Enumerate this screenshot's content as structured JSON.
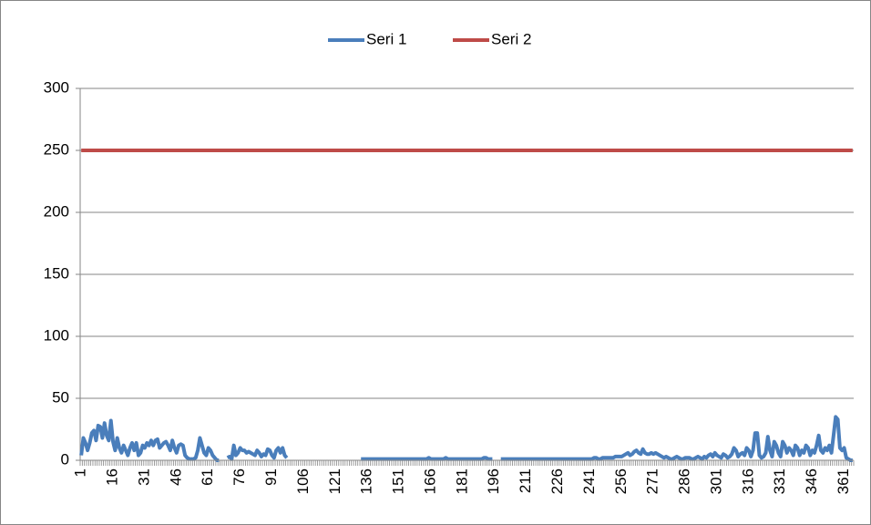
{
  "chart_data": {
    "type": "line",
    "categories": [
      "1",
      null,
      null,
      null,
      null,
      null,
      null,
      null,
      null,
      null,
      null,
      null,
      null,
      null,
      null,
      "16",
      null,
      null,
      null,
      null,
      null,
      null,
      null,
      null,
      null,
      null,
      null,
      null,
      null,
      null,
      "31",
      null,
      null,
      null,
      null,
      null,
      null,
      null,
      null,
      null,
      null,
      null,
      null,
      null,
      null,
      "46",
      null,
      null,
      null,
      null,
      null,
      null,
      null,
      null,
      null,
      null,
      null,
      null,
      null,
      null,
      "61",
      null,
      null,
      null,
      null,
      null,
      null,
      null,
      null,
      null,
      null,
      null,
      null,
      null,
      null,
      "76",
      null,
      null,
      null,
      null,
      null,
      null,
      null,
      null,
      null,
      null,
      null,
      null,
      null,
      null,
      "91",
      null,
      null,
      null,
      null,
      null,
      null,
      null,
      null,
      null,
      null,
      null,
      null,
      null,
      null,
      "106",
      null,
      null,
      null,
      null,
      null,
      null,
      null,
      null,
      null,
      null,
      null,
      null,
      null,
      null,
      "121",
      null,
      null,
      null,
      null,
      null,
      null,
      null,
      null,
      null,
      null,
      null,
      null,
      null,
      null,
      "136",
      null,
      null,
      null,
      null,
      null,
      null,
      null,
      null,
      null,
      null,
      null,
      null,
      null,
      null,
      "151",
      null,
      null,
      null,
      null,
      null,
      null,
      null,
      null,
      null,
      null,
      null,
      null,
      null,
      null,
      "166",
      null,
      null,
      null,
      null,
      null,
      null,
      null,
      null,
      null,
      null,
      null,
      null,
      null,
      null,
      "181",
      null,
      null,
      null,
      null,
      null,
      null,
      null,
      null,
      null,
      null,
      null,
      null,
      null,
      null,
      "196",
      null,
      null,
      null,
      null,
      null,
      null,
      null,
      null,
      null,
      null,
      null,
      null,
      null,
      null,
      "211",
      null,
      null,
      null,
      null,
      null,
      null,
      null,
      null,
      null,
      null,
      null,
      null,
      null,
      null,
      "226",
      null,
      null,
      null,
      null,
      null,
      null,
      null,
      null,
      null,
      null,
      null,
      null,
      null,
      null,
      "241",
      null,
      null,
      null,
      null,
      null,
      null,
      null,
      null,
      null,
      null,
      null,
      null,
      null,
      null,
      "256",
      null,
      null,
      null,
      null,
      null,
      null,
      null,
      null,
      null,
      null,
      null,
      null,
      null,
      null,
      "271",
      null,
      null,
      null,
      null,
      null,
      null,
      null,
      null,
      null,
      null,
      null,
      null,
      null,
      null,
      "286",
      null,
      null,
      null,
      null,
      null,
      null,
      null,
      null,
      null,
      null,
      null,
      null,
      null,
      null,
      "301",
      null,
      null,
      null,
      null,
      null,
      null,
      null,
      null,
      null,
      null,
      null,
      null,
      null,
      null,
      "316",
      null,
      null,
      null,
      null,
      null,
      null,
      null,
      null,
      null,
      null,
      null,
      null,
      null,
      null,
      "331",
      null,
      null,
      null,
      null,
      null,
      null,
      null,
      null,
      null,
      null,
      null,
      null,
      null,
      null,
      "346",
      null,
      null,
      null,
      null,
      null,
      null,
      null,
      null,
      null,
      null,
      null,
      null,
      null,
      null,
      "361",
      null,
      null,
      null,
      null
    ],
    "series": [
      {
        "name": "Seri 1",
        "color": "#4a7ebb",
        "values": [
          4,
          18,
          14,
          8,
          14,
          22,
          24,
          16,
          28,
          27,
          18,
          30,
          20,
          16,
          32,
          15,
          8,
          18,
          10,
          6,
          12,
          8,
          4,
          10,
          14,
          8,
          14,
          4,
          6,
          12,
          10,
          14,
          12,
          16,
          12,
          16,
          17,
          10,
          12,
          14,
          15,
          12,
          8,
          16,
          10,
          6,
          12,
          13,
          12,
          4,
          2,
          1,
          1,
          1,
          2,
          8,
          18,
          12,
          6,
          4,
          10,
          8,
          4,
          2,
          0,
          0,
          null,
          null,
          null,
          2,
          3,
          1,
          12,
          4,
          6,
          10,
          8,
          8,
          6,
          7,
          6,
          5,
          4,
          8,
          6,
          3,
          5,
          4,
          9,
          8,
          4,
          2,
          8,
          10,
          6,
          10,
          4,
          2,
          null,
          null,
          null,
          null,
          null,
          null,
          null,
          null,
          null,
          null,
          null,
          null,
          null,
          null,
          null,
          null,
          null,
          null,
          null,
          null,
          null,
          null,
          null,
          null,
          null,
          null,
          null,
          null,
          null,
          null,
          null,
          null,
          null,
          null,
          1,
          1,
          1,
          1,
          1,
          1,
          1,
          1,
          1,
          1,
          1,
          1,
          1,
          1,
          1,
          1,
          1,
          1,
          1,
          1,
          1,
          1,
          1,
          1,
          1,
          1,
          1,
          1,
          1,
          1,
          1,
          1,
          2,
          1,
          1,
          1,
          1,
          1,
          1,
          1,
          2,
          1,
          1,
          1,
          1,
          1,
          1,
          1,
          1,
          1,
          1,
          1,
          1,
          1,
          1,
          1,
          1,
          1,
          2,
          2,
          1,
          1,
          1,
          null,
          null,
          null,
          1,
          1,
          1,
          1,
          1,
          1,
          1,
          1,
          1,
          1,
          1,
          1,
          1,
          1,
          1,
          1,
          1,
          1,
          1,
          1,
          1,
          1,
          1,
          1,
          1,
          1,
          1,
          1,
          1,
          1,
          1,
          1,
          1,
          1,
          1,
          1,
          1,
          1,
          1,
          1,
          1,
          1,
          1,
          1,
          2,
          2,
          1,
          1,
          2,
          2,
          2,
          2,
          2,
          2,
          3,
          3,
          3,
          3,
          4,
          5,
          6,
          4,
          5,
          7,
          8,
          6,
          5,
          9,
          6,
          5,
          5,
          6,
          5,
          6,
          5,
          4,
          3,
          2,
          3,
          2,
          1,
          1,
          2,
          3,
          2,
          1,
          1,
          2,
          2,
          2,
          1,
          1,
          2,
          3,
          2,
          1,
          3,
          2,
          4,
          5,
          3,
          6,
          4,
          3,
          2,
          5,
          4,
          2,
          3,
          5,
          10,
          8,
          3,
          5,
          6,
          4,
          10,
          8,
          3,
          8,
          22,
          22,
          4,
          2,
          3,
          6,
          19,
          8,
          3,
          15,
          12,
          6,
          3,
          15,
          12,
          6,
          10,
          8,
          4,
          12,
          10,
          4,
          8,
          6,
          12,
          10,
          4,
          8,
          6,
          12,
          20,
          8,
          6,
          10,
          8,
          12,
          6,
          20,
          35,
          33,
          10,
          8,
          10,
          2,
          1,
          0,
          0
        ]
      },
      {
        "name": "Seri 2",
        "color": "#be4b48",
        "values": [
          250,
          250,
          250,
          250,
          250,
          250,
          250,
          250,
          250,
          250,
          250,
          250,
          250,
          250,
          250,
          250,
          250,
          250,
          250,
          250,
          250,
          250,
          250,
          250,
          250,
          250,
          250,
          250,
          250,
          250,
          250,
          250,
          250,
          250,
          250,
          250,
          250,
          250,
          250,
          250,
          250,
          250,
          250,
          250,
          250,
          250,
          250,
          250,
          250,
          250,
          250,
          250,
          250,
          250,
          250,
          250,
          250,
          250,
          250,
          250,
          250,
          250,
          250,
          250,
          250,
          250,
          250,
          250,
          250,
          250,
          250,
          250,
          250,
          250,
          250,
          250,
          250,
          250,
          250,
          250,
          250,
          250,
          250,
          250,
          250,
          250,
          250,
          250,
          250,
          250,
          250,
          250,
          250,
          250,
          250,
          250,
          250,
          250,
          250,
          250,
          250,
          250,
          250,
          250,
          250,
          250,
          250,
          250,
          250,
          250,
          250,
          250,
          250,
          250,
          250,
          250,
          250,
          250,
          250,
          250,
          250,
          250,
          250,
          250,
          250,
          250,
          250,
          250,
          250,
          250,
          250,
          250,
          250,
          250,
          250,
          250,
          250,
          250,
          250,
          250,
          250,
          250,
          250,
          250,
          250,
          250,
          250,
          250,
          250,
          250,
          250,
          250,
          250,
          250,
          250,
          250,
          250,
          250,
          250,
          250,
          250,
          250,
          250,
          250,
          250,
          250,
          250,
          250,
          250,
          250,
          250,
          250,
          250,
          250,
          250,
          250,
          250,
          250,
          250,
          250,
          250,
          250,
          250,
          250,
          250,
          250,
          250,
          250,
          250,
          250,
          250,
          250,
          250,
          250,
          250,
          250,
          250,
          250,
          250,
          250,
          250,
          250,
          250,
          250,
          250,
          250,
          250,
          250,
          250,
          250,
          250,
          250,
          250,
          250,
          250,
          250,
          250,
          250,
          250,
          250,
          250,
          250,
          250,
          250,
          250,
          250,
          250,
          250,
          250,
          250,
          250,
          250,
          250,
          250,
          250,
          250,
          250,
          250,
          250,
          250,
          250,
          250,
          250,
          250,
          250,
          250,
          250,
          250,
          250,
          250,
          250,
          250,
          250,
          250,
          250,
          250,
          250,
          250,
          250,
          250,
          250,
          250,
          250,
          250,
          250,
          250,
          250,
          250,
          250,
          250,
          250,
          250,
          250,
          250,
          250,
          250,
          250,
          250,
          250,
          250,
          250,
          250,
          250,
          250,
          250,
          250,
          250,
          250,
          250,
          250,
          250,
          250,
          250,
          250,
          250,
          250,
          250,
          250,
          250,
          250,
          250,
          250,
          250,
          250,
          250,
          250,
          250,
          250,
          250,
          250,
          250,
          250,
          250,
          250,
          250,
          250,
          250,
          250,
          250,
          250,
          250,
          250,
          250,
          250,
          250,
          250,
          250,
          250,
          250,
          250,
          250,
          250,
          250,
          250,
          250,
          250,
          250,
          250,
          250,
          250,
          250,
          250,
          250,
          250,
          250,
          250,
          250,
          250,
          250,
          250,
          250,
          250,
          250,
          250,
          250,
          250,
          250,
          250,
          250,
          250,
          250,
          250,
          250,
          250,
          250
        ]
      }
    ],
    "ylim": [
      0,
      300
    ],
    "yticks": [
      0,
      50,
      100,
      150,
      200,
      250,
      300
    ],
    "grid": true,
    "legend": "top"
  }
}
